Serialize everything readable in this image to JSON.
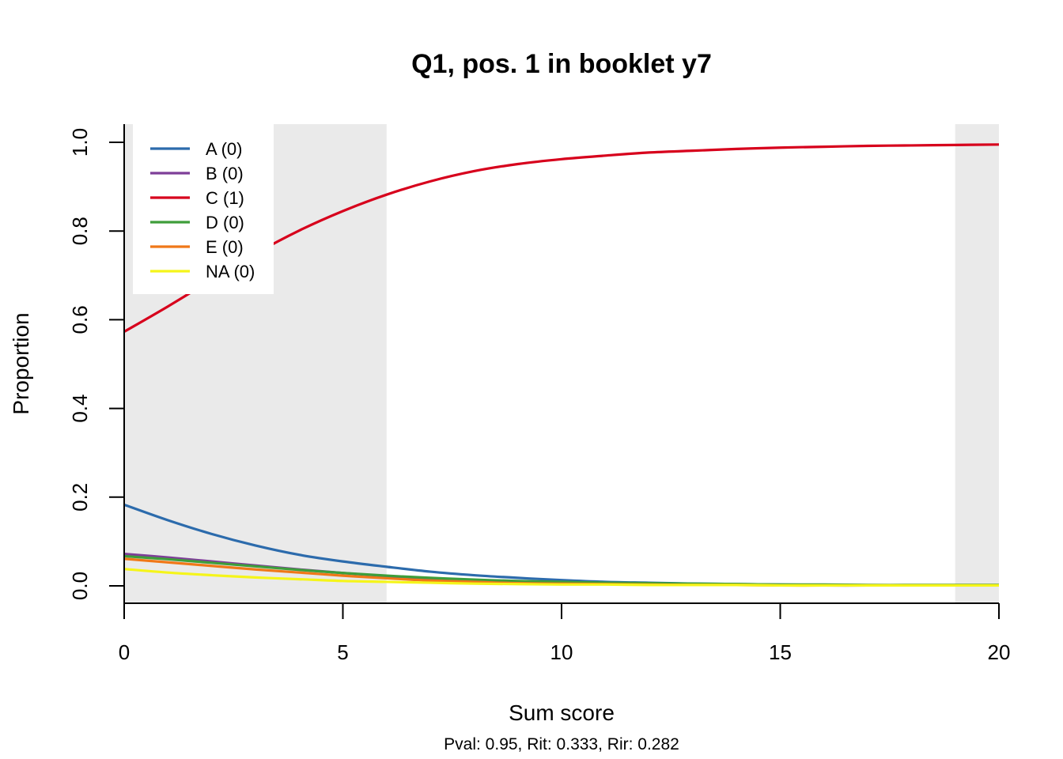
{
  "chart_data": {
    "type": "line",
    "title": "Q1, pos. 1 in booklet y7",
    "xlabel": "Sum score",
    "ylabel": "Proportion",
    "subtitle": "Pval: 0.95, Rit: 0.333, Rir: 0.282",
    "xlim": [
      0,
      20
    ],
    "ylim": [
      0,
      1
    ],
    "xticks": [
      "0",
      "5",
      "10",
      "15",
      "20"
    ],
    "yticks": [
      "0.0",
      "0.2",
      "0.4",
      "0.6",
      "0.8",
      "1.0"
    ],
    "shaded_ranges": [
      [
        0,
        6
      ],
      [
        19,
        20
      ]
    ],
    "legend_position": "top-left",
    "x": [
      0,
      1,
      2,
      3,
      4,
      5,
      6,
      7,
      8,
      9,
      10,
      11,
      12,
      13,
      14,
      15,
      16,
      17,
      18,
      19,
      20
    ],
    "series": [
      {
        "name": "A (0)",
        "color": "#2C6BAC",
        "values": [
          0.183,
          0.148,
          0.117,
          0.091,
          0.07,
          0.055,
          0.043,
          0.032,
          0.024,
          0.018,
          0.013,
          0.009,
          0.007,
          0.005,
          0.004,
          0.003,
          0.002,
          0.0015,
          0.001,
          0.001,
          0.001
        ]
      },
      {
        "name": "B (0)",
        "color": "#7E3E98",
        "values": [
          0.072,
          0.064,
          0.055,
          0.046,
          0.037,
          0.029,
          0.022,
          0.016,
          0.012,
          0.009,
          0.006,
          0.005,
          0.004,
          0.003,
          0.002,
          0.002,
          0.001,
          0.001,
          0.001,
          0.001,
          0.001
        ]
      },
      {
        "name": "C (1)",
        "color": "#D7001C",
        "values": [
          0.573,
          0.63,
          0.69,
          0.749,
          0.801,
          0.845,
          0.882,
          0.912,
          0.935,
          0.951,
          0.962,
          0.97,
          0.977,
          0.981,
          0.985,
          0.988,
          0.99,
          0.992,
          0.993,
          0.994,
          0.995
        ]
      },
      {
        "name": "D (0)",
        "color": "#3E9E3A",
        "values": [
          0.067,
          0.06,
          0.052,
          0.044,
          0.036,
          0.029,
          0.023,
          0.018,
          0.014,
          0.011,
          0.009,
          0.007,
          0.006,
          0.005,
          0.004,
          0.003,
          0.003,
          0.002,
          0.002,
          0.002,
          0.002
        ]
      },
      {
        "name": "E (0)",
        "color": "#F07818",
        "values": [
          0.061,
          0.053,
          0.045,
          0.037,
          0.03,
          0.023,
          0.017,
          0.012,
          0.009,
          0.006,
          0.005,
          0.004,
          0.003,
          0.002,
          0.002,
          0.001,
          0.001,
          0.001,
          0.001,
          0.001,
          0.001
        ]
      },
      {
        "name": "NA (0)",
        "color": "#F5F51A",
        "values": [
          0.038,
          0.03,
          0.024,
          0.019,
          0.015,
          0.011,
          0.009,
          0.007,
          0.005,
          0.004,
          0.003,
          0.003,
          0.002,
          0.002,
          0.002,
          0.001,
          0.001,
          0.001,
          0.001,
          0.001,
          0.001
        ]
      }
    ]
  }
}
